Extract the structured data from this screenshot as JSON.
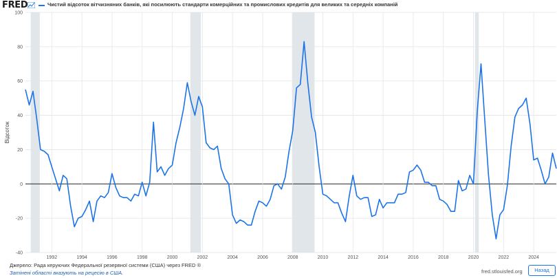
{
  "header": {
    "logo_text": "FRED",
    "series_title": "Чистий відсоток вітчизняних банків, які посилюють стандарти комерційних та промислових кредитів для великих та середніх компаній",
    "line_color": "#1a73e8"
  },
  "footer": {
    "source": "Джерело: Рада керуючих Федеральної резервної системи (США) через FRED ®",
    "shading_note": "Затінені області вказують на рецесію в США.",
    "site": "fred.stlouisfed.org",
    "back_button": "Назад"
  },
  "chart_data": {
    "type": "line",
    "title": "Чистий відсоток вітчизняних банків, які посилюють стандарти комерційних та промислових кредитів для великих та середніх компаній",
    "xlabel": "",
    "ylabel": "Відсоток",
    "xlim": [
      1990.25,
      2025.5
    ],
    "ylim": [
      -40,
      100
    ],
    "yticks": [
      -40,
      -20,
      0,
      20,
      40,
      60,
      80,
      100
    ],
    "xticks": [
      1992,
      1994,
      1996,
      1998,
      2000,
      2002,
      2004,
      2006,
      2008,
      2010,
      2012,
      2014,
      2016,
      2018,
      2020,
      2022,
      2024
    ],
    "grid": true,
    "recessions": [
      [
        1990.6,
        1991.2
      ],
      [
        2001.2,
        2001.9
      ],
      [
        2007.95,
        2009.45
      ],
      [
        2020.1,
        2020.35
      ]
    ],
    "series": [
      {
        "name": "Чистий відсоток",
        "x": [
          1990.25,
          1990.5,
          1990.75,
          1991.0,
          1991.25,
          1991.5,
          1991.75,
          1992.0,
          1992.25,
          1992.5,
          1992.75,
          1993.0,
          1993.25,
          1993.5,
          1993.75,
          1994.0,
          1994.25,
          1994.5,
          1994.75,
          1995.0,
          1995.25,
          1995.5,
          1995.75,
          1996.0,
          1996.25,
          1996.5,
          1996.75,
          1997.0,
          1997.25,
          1997.5,
          1997.75,
          1998.0,
          1998.25,
          1998.5,
          1998.75,
          1999.0,
          1999.25,
          1999.5,
          1999.75,
          2000.0,
          2000.25,
          2000.5,
          2000.75,
          2001.0,
          2001.25,
          2001.5,
          2001.75,
          2002.0,
          2002.25,
          2002.5,
          2002.75,
          2003.0,
          2003.25,
          2003.5,
          2003.75,
          2004.0,
          2004.25,
          2004.5,
          2004.75,
          2005.0,
          2005.25,
          2005.5,
          2005.75,
          2006.0,
          2006.25,
          2006.5,
          2006.75,
          2007.0,
          2007.25,
          2007.5,
          2007.75,
          2008.0,
          2008.25,
          2008.5,
          2008.75,
          2009.0,
          2009.25,
          2009.5,
          2009.75,
          2010.0,
          2010.25,
          2010.5,
          2010.75,
          2011.0,
          2011.25,
          2011.5,
          2011.75,
          2012.0,
          2012.25,
          2012.5,
          2012.75,
          2013.0,
          2013.25,
          2013.5,
          2013.75,
          2014.0,
          2014.25,
          2014.5,
          2014.75,
          2015.0,
          2015.25,
          2015.5,
          2015.75,
          2016.0,
          2016.25,
          2016.5,
          2016.75,
          2017.0,
          2017.25,
          2017.5,
          2017.75,
          2018.0,
          2018.25,
          2018.5,
          2018.75,
          2019.0,
          2019.25,
          2019.5,
          2019.75,
          2020.0,
          2020.25,
          2020.5,
          2020.75,
          2021.0,
          2021.25,
          2021.5,
          2021.75,
          2022.0,
          2022.25,
          2022.5,
          2022.75,
          2023.0,
          2023.25,
          2023.5,
          2023.75,
          2024.0,
          2024.25,
          2024.5,
          2024.75,
          2025.0,
          2025.25,
          2025.5
        ],
        "values": [
          55,
          46,
          54,
          38,
          20,
          19,
          17,
          10,
          3,
          -4,
          5,
          3,
          -13,
          -25,
          -20,
          -19,
          -15,
          -10,
          -22,
          -10,
          -7,
          -8,
          -5,
          6,
          -2,
          -7,
          -8,
          -8,
          -10,
          -6,
          -7,
          1,
          -7,
          1,
          36,
          7,
          10,
          5,
          9,
          11,
          24,
          33,
          44,
          59,
          48,
          40,
          51,
          45,
          24,
          21,
          20,
          22,
          9,
          3,
          0,
          -18,
          -23,
          -21,
          -22,
          -24,
          -24,
          -16,
          -10,
          -11,
          -13,
          -9,
          -1,
          0,
          -3,
          4,
          19,
          31,
          56,
          58,
          83,
          59,
          39,
          30,
          10,
          -6,
          -7,
          -9,
          -11,
          -11,
          -17,
          -22,
          -7,
          5,
          -7,
          -9,
          -8,
          -8,
          -19,
          -18,
          -9,
          -14,
          -11,
          -11,
          -11,
          -6,
          -6,
          -5,
          7,
          8,
          11,
          8,
          1,
          1,
          -1,
          -1,
          -9,
          -10,
          -12,
          -16,
          -16,
          2,
          -4,
          -3,
          5,
          0,
          42,
          70,
          37,
          5,
          -18,
          -32,
          -18,
          -15,
          -1,
          22,
          39,
          44,
          46,
          50,
          35,
          14,
          15,
          8,
          0,
          4,
          18,
          9
        ]
      }
    ]
  }
}
